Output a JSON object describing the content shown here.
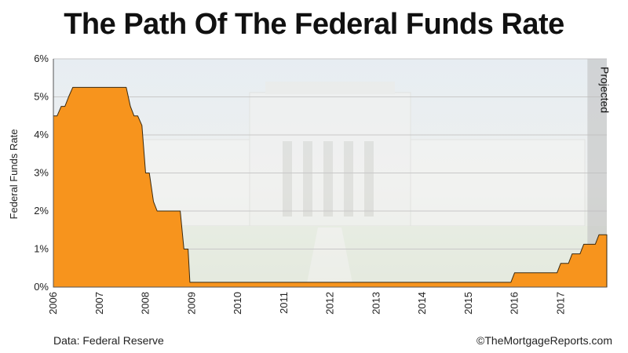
{
  "title": "The Path Of The Federal Funds Rate",
  "source": "Data: Federal Reserve",
  "credit": "©TheMortgageReports.com",
  "colors": {
    "fill": "#f7941d",
    "stroke": "#3a2a10",
    "projected_band": "#bdbdbd",
    "grid": "#c8c8c8"
  },
  "chart_data": {
    "type": "area",
    "title": "The Path Of The Federal Funds Rate",
    "xlabel": "",
    "ylabel": "Federal Funds Rate",
    "xlim": [
      2006.0,
      2018.0
    ],
    "ylim": [
      0,
      6
    ],
    "y_ticks": [
      "0%",
      "1%",
      "2%",
      "3%",
      "4%",
      "5%",
      "6%"
    ],
    "x_ticks": [
      "2006",
      "2007",
      "2008",
      "2009",
      "2010",
      "2011",
      "2012",
      "2013",
      "2014",
      "2015",
      "2016",
      "2017"
    ],
    "projected": {
      "label": "Projected",
      "start": 2017.58,
      "end": 2018.0
    },
    "grid": true,
    "series": [
      {
        "x": [
          2006.0,
          2006.08,
          2006.17,
          2006.25,
          2006.33,
          2006.42,
          2007.58,
          2007.67,
          2007.75,
          2007.83,
          2007.92,
          2008.0,
          2008.08,
          2008.17,
          2008.25,
          2008.33,
          2008.75,
          2008.83,
          2008.92,
          2008.96,
          2015.92,
          2016.0,
          2016.92,
          2017.0,
          2017.17,
          2017.25,
          2017.42,
          2017.5,
          2017.67,
          2017.75,
          2017.83,
          2018.0
        ],
        "y": [
          4.5,
          4.5,
          4.75,
          4.75,
          5.0,
          5.25,
          5.25,
          4.75,
          4.5,
          4.5,
          4.25,
          3.0,
          3.0,
          2.25,
          2.0,
          2.0,
          2.0,
          1.0,
          1.0,
          0.125,
          0.125,
          0.375,
          0.375,
          0.625,
          0.625,
          0.875,
          0.875,
          1.125,
          1.125,
          1.125,
          1.375,
          1.375
        ]
      }
    ]
  }
}
